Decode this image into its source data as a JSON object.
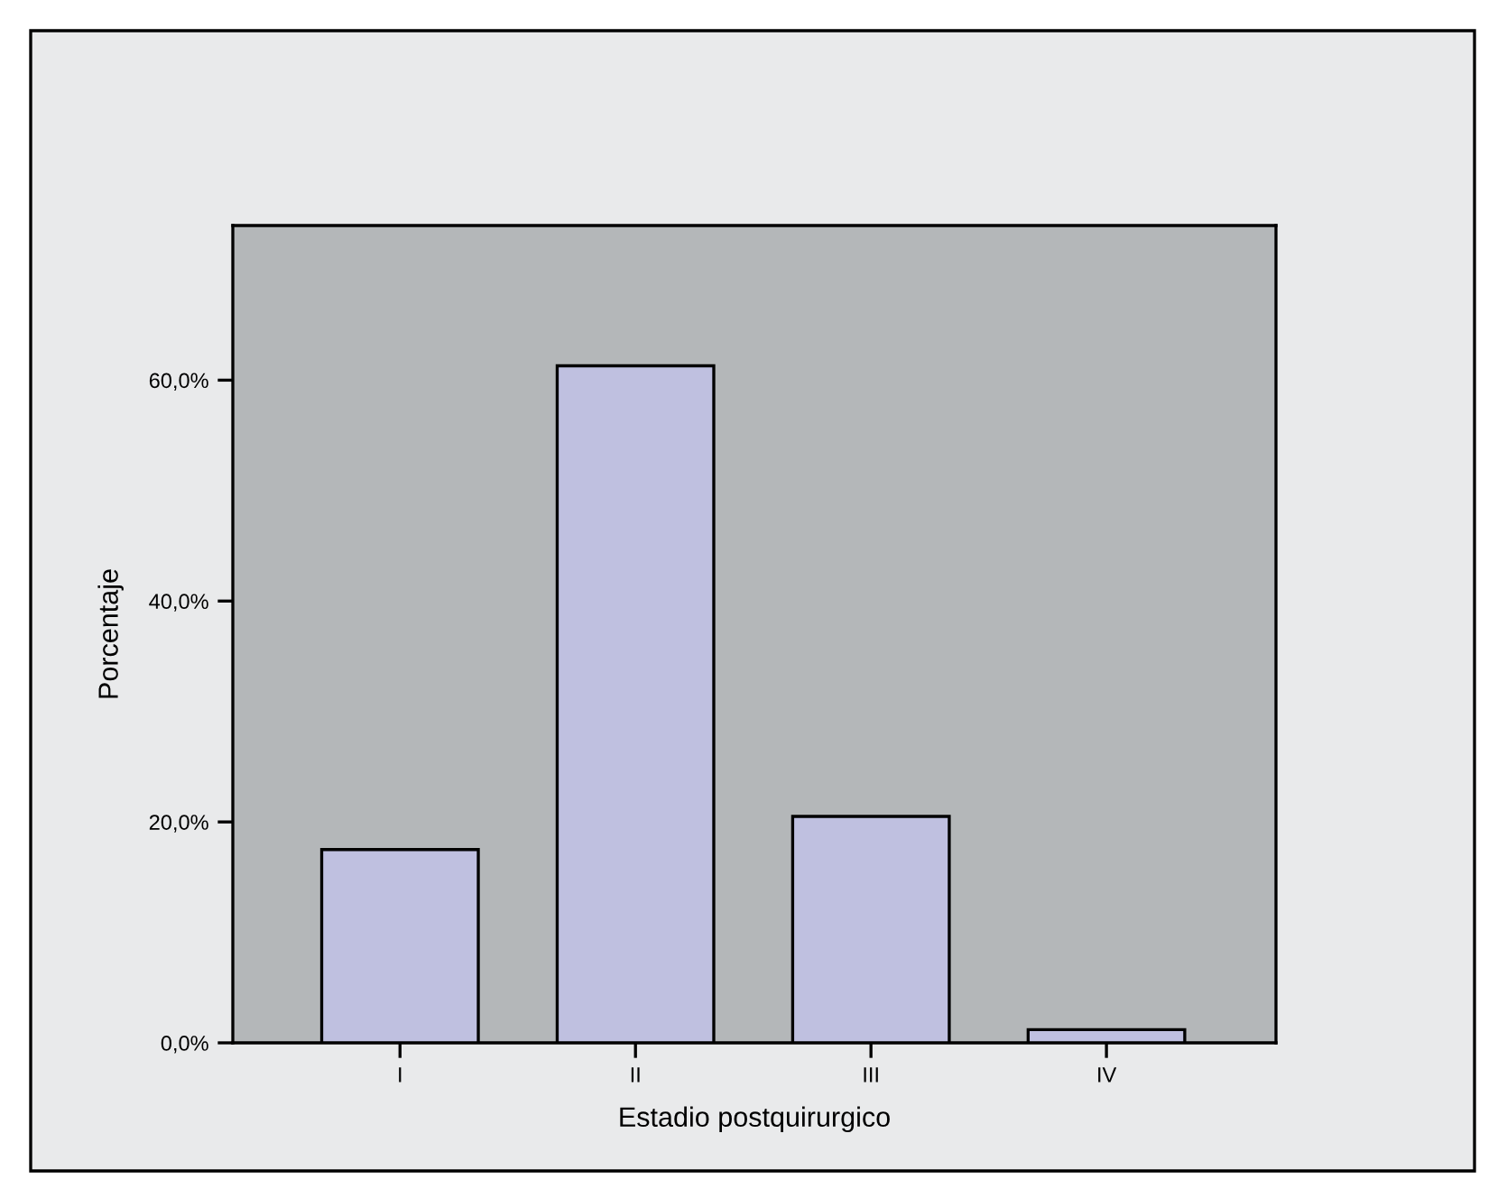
{
  "chart_data": {
    "type": "bar",
    "xlabel": "Estadio postquirurgico",
    "ylabel": "Porcentaje",
    "categories": [
      "I",
      "II",
      "III",
      "IV"
    ],
    "values": [
      17.5,
      61.3,
      20.5,
      1.2
    ],
    "color": "#bfc0e0",
    "ylim": [
      0,
      74
    ],
    "yticks": [
      {
        "value": 0,
        "label": "0,0%"
      },
      {
        "value": 20,
        "label": "20,0%"
      },
      {
        "value": 40,
        "label": "40,0%"
      },
      {
        "value": 60,
        "label": "60,0%"
      }
    ]
  }
}
